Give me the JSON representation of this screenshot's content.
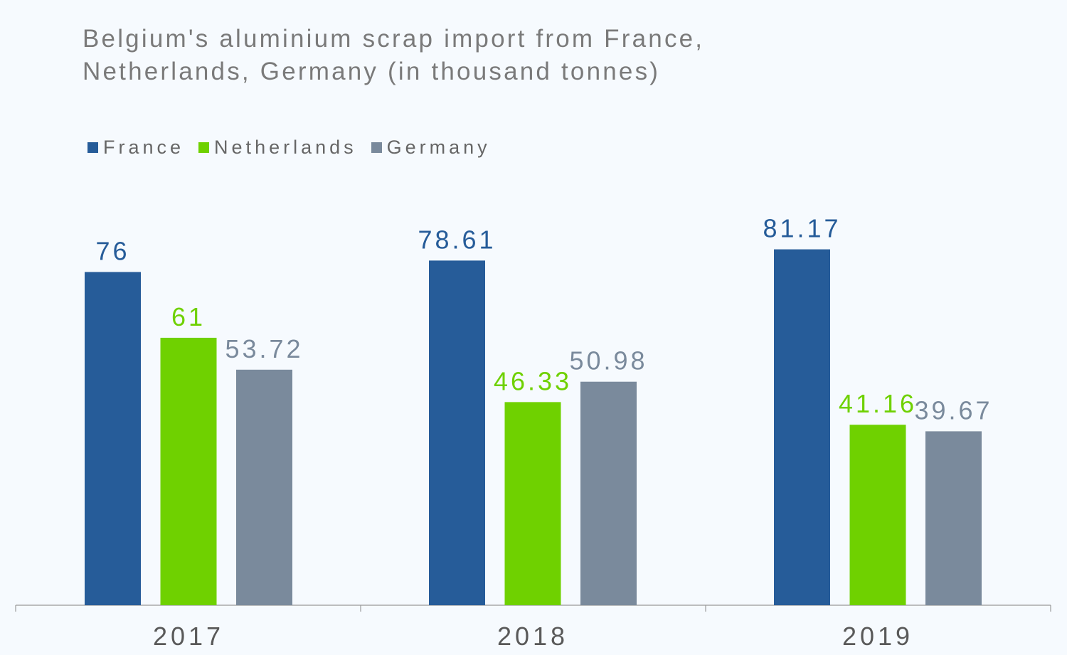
{
  "title_lines": [
    "Belgium's aluminium scrap import from France,",
    "Netherlands, Germany (in thousand tonnes)"
  ],
  "colors": {
    "France": "#265c99",
    "Netherlands": "#6fd100",
    "Germany": "#7a8a9c",
    "axis": "#999999"
  },
  "chart_data": {
    "type": "bar",
    "title": "Belgium's aluminium scrap import from France, Netherlands, Germany (in thousand tonnes)",
    "categories": [
      "2017",
      "2018",
      "2019"
    ],
    "series": [
      {
        "name": "France",
        "values": [
          76,
          78.61,
          81.17
        ],
        "labels": [
          "76",
          "78.61",
          "81.17"
        ]
      },
      {
        "name": "Netherlands",
        "values": [
          61,
          46.33,
          41.16
        ],
        "labels": [
          "61",
          "46.33",
          "41.16"
        ]
      },
      {
        "name": "Germany",
        "values": [
          53.72,
          50.98,
          39.67
        ],
        "labels": [
          "53.72",
          "50.98",
          "39.67"
        ]
      }
    ],
    "xlabel": "",
    "ylabel": "",
    "ylim": [
      0,
      100
    ],
    "grid": false,
    "legend": "top-left"
  }
}
